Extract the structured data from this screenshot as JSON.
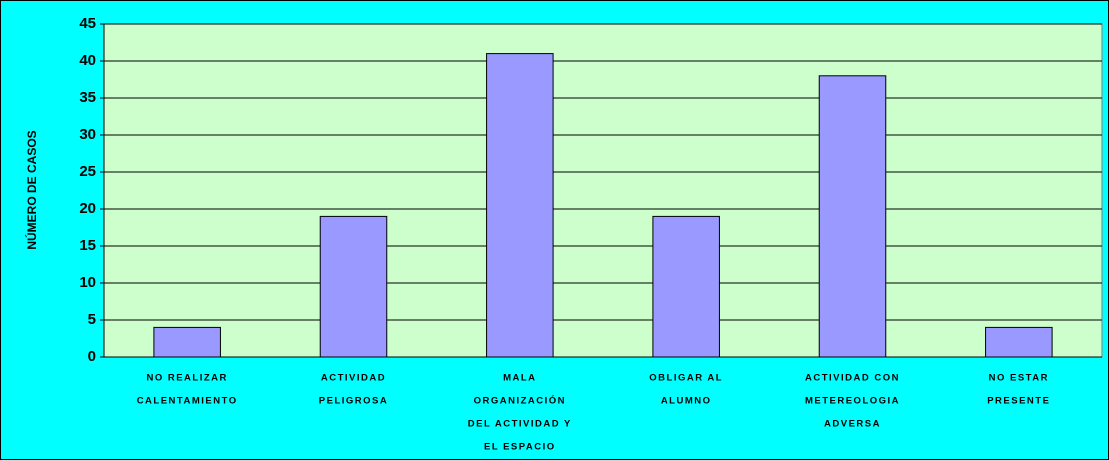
{
  "chart_data": {
    "type": "bar",
    "y_label": "NÚMERO DE CASOS",
    "categories": [
      [
        "NO REALIZAR",
        "CALENTAMIENTO"
      ],
      [
        "ACTIVIDAD",
        "PELIGROSA"
      ],
      [
        "MALA",
        "ORGANIZACIÓN",
        "DEL ACTIVIDAD Y",
        "EL ESPACIO"
      ],
      [
        "OBLIGAR AL",
        "ALUMNO"
      ],
      [
        "ACTIVIDAD CON",
        "METEREOLOGIA",
        "ADVERSA"
      ],
      [
        "NO ESTAR",
        "PRESENTE"
      ]
    ],
    "values": [
      4,
      19,
      41,
      19,
      38,
      4
    ],
    "color": "#9999ff",
    "ylim": [
      0,
      45
    ],
    "yticks": [
      0,
      5,
      10,
      15,
      20,
      25,
      30,
      35,
      40,
      45
    ],
    "grid": true
  }
}
